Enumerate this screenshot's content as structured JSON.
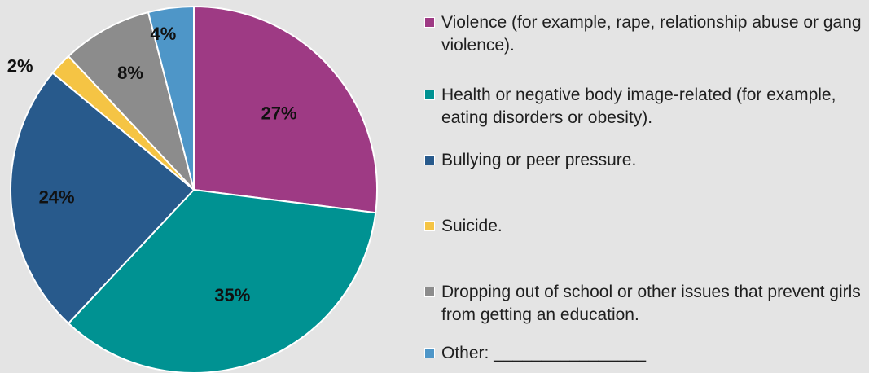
{
  "chart_data": {
    "type": "pie",
    "title": "",
    "slices": [
      {
        "label": "Violence (for example, rape, relationship abuse or gang violence).",
        "value": 27,
        "value_label": "27%",
        "color": "#9e3a84"
      },
      {
        "label": "Health or negative body image-related (for example, eating disorders or obesity).",
        "value": 35,
        "value_label": "35%",
        "color": "#009292"
      },
      {
        "label": "Bullying or peer pressure.",
        "value": 24,
        "value_label": "24%",
        "color": "#285a8c"
      },
      {
        "label": "Suicide.",
        "value": 2,
        "value_label": "2%",
        "color": "#f5c444"
      },
      {
        "label": "Dropping out of school or other issues that prevent girls from getting an education.",
        "value": 8,
        "value_label": "8%",
        "color": "#8c8c8c"
      },
      {
        "label": "Other: ________________",
        "value": 4,
        "value_label": "4%",
        "color": "#4e96c8"
      }
    ],
    "start_angle_deg": 0,
    "direction": "clockwise",
    "legend_position": "right"
  }
}
